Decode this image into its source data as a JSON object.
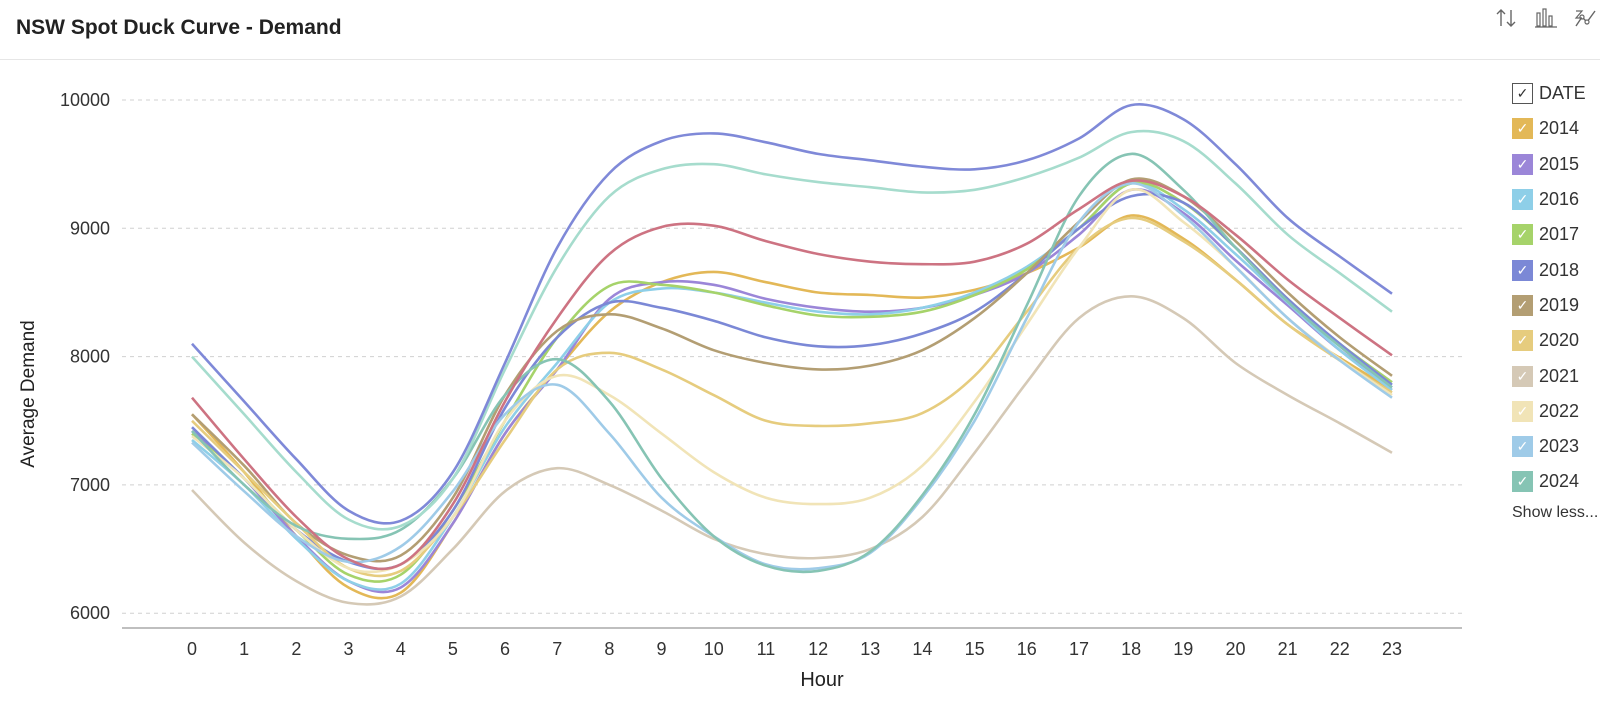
{
  "title": "NSW Spot Duck Curve - Demand",
  "toolbar": [
    {
      "name": "sort-icon"
    },
    {
      "name": "bar-chart-icon"
    },
    {
      "name": "chart-type-icon"
    }
  ],
  "legend": {
    "header": "DATE",
    "header_check": "✓",
    "check": "✓",
    "show_less": "Show less..."
  },
  "chart_data": {
    "type": "line",
    "title": "NSW Spot Duck Curve - Demand",
    "xlabel": "Hour",
    "ylabel": "Average Demand",
    "x": [
      0,
      1,
      2,
      3,
      4,
      5,
      6,
      7,
      8,
      9,
      10,
      11,
      12,
      13,
      14,
      15,
      16,
      17,
      18,
      19,
      20,
      21,
      22,
      23
    ],
    "ylim": [
      5880,
      10000
    ],
    "yticks": [
      6000,
      7000,
      8000,
      9000,
      10000
    ],
    "grid": true,
    "legend_position": "right",
    "series": [
      {
        "name": "2014",
        "color": "#e3b857",
        "values": [
          7550,
          7100,
          6600,
          6200,
          6160,
          6700,
          7400,
          7900,
          8350,
          8580,
          8660,
          8580,
          8500,
          8480,
          8460,
          8520,
          8650,
          8850,
          9100,
          8920,
          8600,
          8250,
          7990,
          7740
        ]
      },
      {
        "name": "2015",
        "color": "#9b86d8",
        "values": [
          7420,
          7050,
          6600,
          6250,
          6200,
          6700,
          7400,
          7900,
          8450,
          8580,
          8560,
          8450,
          8380,
          8350,
          8380,
          8480,
          8650,
          8950,
          9300,
          9120,
          8750,
          8400,
          8050,
          7760
        ]
      },
      {
        "name": "2016",
        "color": "#8ecfe8",
        "values": [
          7350,
          7000,
          6580,
          6250,
          6230,
          6750,
          7450,
          7950,
          8420,
          8530,
          8500,
          8420,
          8350,
          8330,
          8380,
          8500,
          8700,
          9000,
          9350,
          9150,
          8800,
          8420,
          8050,
          7740
        ]
      },
      {
        "name": "2017",
        "color": "#a6d36a",
        "values": [
          7400,
          7050,
          6650,
          6300,
          6300,
          6800,
          7500,
          8150,
          8550,
          8560,
          8500,
          8400,
          8320,
          8310,
          8350,
          8480,
          8680,
          9000,
          9350,
          9200,
          8850,
          8450,
          8100,
          7800
        ]
      },
      {
        "name": "2018",
        "color": "#7b88d6",
        "values": [
          7450,
          7050,
          6650,
          6400,
          6380,
          6800,
          7600,
          8150,
          8420,
          8380,
          8280,
          8150,
          8080,
          8090,
          8180,
          8350,
          8650,
          9000,
          9250,
          9200,
          8850,
          8450,
          8100,
          7780
        ]
      },
      {
        "name": "2019",
        "color": "#b39e73",
        "values": [
          7550,
          7150,
          6700,
          6450,
          6450,
          6900,
          7700,
          8200,
          8330,
          8220,
          8050,
          7950,
          7900,
          7930,
          8050,
          8300,
          8650,
          9050,
          9380,
          9250,
          8900,
          8500,
          8150,
          7850
        ]
      },
      {
        "name": "2020",
        "color": "#e6cc7e",
        "values": [
          7500,
          7100,
          6700,
          6350,
          6330,
          6750,
          7350,
          7900,
          8030,
          7900,
          7700,
          7500,
          7460,
          7480,
          7560,
          7850,
          8350,
          8850,
          9080,
          8900,
          8600,
          8250,
          7970,
          7720
        ]
      },
      {
        "name": "2021",
        "color": "#d5c9b6",
        "values": [
          6960,
          6550,
          6250,
          6080,
          6130,
          6500,
          6950,
          7130,
          7000,
          6800,
          6580,
          6460,
          6430,
          6500,
          6750,
          7250,
          7800,
          8300,
          8470,
          8300,
          7950,
          7700,
          7480,
          7250
        ]
      },
      {
        "name": "2022",
        "color": "#f1e4b7",
        "values": [
          7380,
          7050,
          6650,
          6350,
          6380,
          6750,
          7500,
          7850,
          7700,
          7400,
          7100,
          6900,
          6850,
          6900,
          7150,
          7650,
          8250,
          8850,
          9300,
          9050,
          8700,
          8300,
          7980,
          7700
        ]
      },
      {
        "name": "2023",
        "color": "#9fcbe8",
        "values": [
          7330,
          6950,
          6600,
          6400,
          6520,
          6950,
          7550,
          7780,
          7400,
          6900,
          6600,
          6380,
          6350,
          6470,
          6900,
          7500,
          8300,
          9050,
          9350,
          9100,
          8700,
          8300,
          7970,
          7680
        ]
      },
      {
        "name": "2024",
        "color": "#86c4b4",
        "values": [
          7420,
          7000,
          6680,
          6580,
          6650,
          7050,
          7700,
          7980,
          7650,
          7050,
          6600,
          6370,
          6330,
          6480,
          6920,
          7550,
          8400,
          9250,
          9580,
          9300,
          8850,
          8430,
          8080,
          7760
        ]
      },
      {
        "name": "",
        "color": "#cd7382",
        "values": [
          7680,
          7200,
          6750,
          6420,
          6380,
          6850,
          7650,
          8300,
          8800,
          9010,
          9020,
          8900,
          8800,
          8740,
          8720,
          8740,
          8880,
          9150,
          9370,
          9250,
          8950,
          8600,
          8300,
          8010
        ]
      },
      {
        "name": "",
        "color": "#a6dccd",
        "values": [
          8000,
          7550,
          7100,
          6730,
          6680,
          7050,
          7900,
          8700,
          9250,
          9460,
          9500,
          9420,
          9360,
          9320,
          9280,
          9300,
          9400,
          9550,
          9750,
          9680,
          9350,
          8950,
          8650,
          8350
        ]
      },
      {
        "name": "",
        "color": "#7f89d8",
        "values": [
          8100,
          7650,
          7200,
          6800,
          6720,
          7100,
          7950,
          8850,
          9430,
          9680,
          9740,
          9670,
          9580,
          9530,
          9480,
          9460,
          9530,
          9700,
          9960,
          9850,
          9500,
          9080,
          8780,
          8490
        ]
      }
    ]
  }
}
